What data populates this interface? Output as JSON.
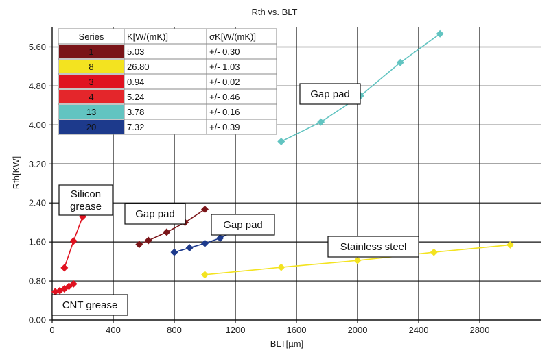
{
  "chart_data": {
    "type": "scatter",
    "title": "Rth vs. BLT",
    "xlabel": "BLT[µm]",
    "ylabel": "Rth[KW]",
    "xlim": [
      0,
      3200
    ],
    "ylim": [
      0,
      6.0
    ],
    "x_ticks": [
      "0",
      "400",
      "800",
      "1200",
      "1600",
      "2000",
      "2400",
      "2800"
    ],
    "y_ticks": [
      "0.00",
      "0.80",
      "1.60",
      "2.40",
      "3.20",
      "4.00",
      "4.80",
      "5.60"
    ],
    "grid": true,
    "series": [
      {
        "name": "1",
        "color": "#7a1418",
        "x": [
          570,
          630,
          750,
          870,
          1000
        ],
        "y": [
          1.55,
          1.63,
          1.8,
          2.0,
          2.27
        ]
      },
      {
        "name": "8",
        "color": "#f3e320",
        "x": [
          1000,
          1500,
          2000,
          2500,
          3000
        ],
        "y": [
          0.93,
          1.08,
          1.22,
          1.39,
          1.54
        ]
      },
      {
        "name": "3",
        "color": "#e01220",
        "x": [
          20,
          50,
          80,
          110,
          140
        ],
        "y": [
          0.58,
          0.6,
          0.64,
          0.69,
          0.74
        ]
      },
      {
        "name": "4",
        "color": "#e01220",
        "x": [
          80,
          140,
          200
        ],
        "y": [
          1.07,
          1.62,
          2.12
        ]
      },
      {
        "name": "13",
        "color": "#62c4c1",
        "x": [
          1500,
          1760,
          2020,
          2280,
          2540
        ],
        "y": [
          3.66,
          4.06,
          4.6,
          5.28,
          5.87
        ]
      },
      {
        "name": "20",
        "color": "#1d3a8c",
        "x": [
          800,
          900,
          1000,
          1100,
          1200
        ],
        "y": [
          1.39,
          1.48,
          1.57,
          1.68,
          1.83
        ]
      }
    ],
    "legend": {
      "placement": "top-left",
      "headers": [
        "Series",
        "K[W/(mK)]",
        "σK[W/(mK)]"
      ],
      "rows": [
        {
          "series": "1",
          "k": "5.03",
          "sigma": "+/- 0.30",
          "color": "#7a1418",
          "text_color": "#ffffff"
        },
        {
          "series": "8",
          "k": "26.80",
          "sigma": "+/- 1.03",
          "color": "#f3e320",
          "text_color": "#111111"
        },
        {
          "series": "3",
          "k": "0.94",
          "sigma": "+/- 0.02",
          "color": "#e01220",
          "text_color": "#111111"
        },
        {
          "series": "4",
          "k": "5.24",
          "sigma": "+/- 0.46",
          "color": "#e4262b",
          "text_color": "#111111"
        },
        {
          "series": "13",
          "k": "3.78",
          "sigma": "+/- 0.16",
          "color": "#62c4c1",
          "text_color": "#111111"
        },
        {
          "series": "20",
          "k": "7.32",
          "sigma": "+/- 0.39",
          "color": "#1d3a8c",
          "text_color": "#ffffff"
        }
      ]
    },
    "annotations": [
      {
        "id": "gap-pad-13",
        "lines": [
          "Gap pad"
        ]
      },
      {
        "id": "silicon-grease",
        "lines": [
          "Silicon",
          "grease"
        ]
      },
      {
        "id": "gap-pad-1",
        "lines": [
          "Gap pad"
        ]
      },
      {
        "id": "gap-pad-20",
        "lines": [
          "Gap pad"
        ]
      },
      {
        "id": "stainless-steel",
        "lines": [
          "Stainless steel"
        ]
      },
      {
        "id": "cnt-grease",
        "lines": [
          "CNT grease"
        ]
      }
    ]
  }
}
